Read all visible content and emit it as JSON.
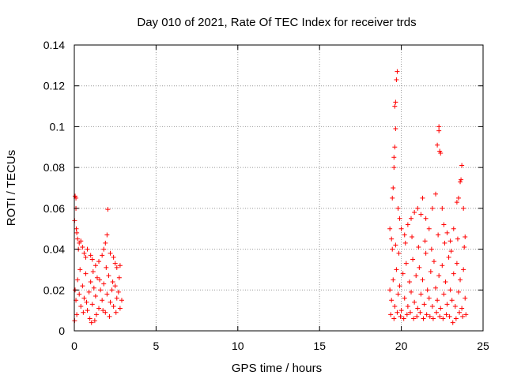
{
  "chart_data": {
    "type": "scatter",
    "title": "Day 010 of 2021, Rate Of TEC Index for receiver trds",
    "xlabel": "GPS time / hours",
    "ylabel": "ROTI / TECUs",
    "xlim": [
      0,
      25
    ],
    "ylim": [
      0,
      0.14
    ],
    "xticks": [
      0,
      5,
      10,
      15,
      20,
      25
    ],
    "yticks": [
      0,
      0.02,
      0.04,
      0.06,
      0.08,
      0.1,
      0.12,
      0.14
    ],
    "xtick_labels": [
      "0",
      "5",
      "10",
      "15",
      "20",
      "25"
    ],
    "ytick_labels": [
      "0",
      "0.02",
      "0.04",
      "0.06",
      "0.08",
      "0.1",
      "0.12",
      "0.14"
    ],
    "grid": true,
    "marker": "+",
    "color": "#ff0000",
    "points": [
      [
        0.02,
        0.054
      ],
      [
        0.05,
        0.066
      ],
      [
        0.1,
        0.065
      ],
      [
        0.1,
        0.06
      ],
      [
        0.12,
        0.05
      ],
      [
        0.15,
        0.048
      ],
      [
        0.2,
        0.045
      ],
      [
        0.25,
        0.04
      ],
      [
        0.3,
        0.043
      ],
      [
        0.4,
        0.044
      ],
      [
        0.5,
        0.041
      ],
      [
        0.6,
        0.038
      ],
      [
        0.7,
        0.036
      ],
      [
        0.8,
        0.04
      ],
      [
        1.0,
        0.037
      ],
      [
        1.1,
        0.035
      ],
      [
        1.3,
        0.032
      ],
      [
        1.5,
        0.034
      ],
      [
        1.7,
        0.037
      ],
      [
        1.8,
        0.04
      ],
      [
        1.9,
        0.043
      ],
      [
        2.0,
        0.047
      ],
      [
        2.05,
        0.0595
      ],
      [
        2.2,
        0.038
      ],
      [
        2.4,
        0.036
      ],
      [
        2.5,
        0.033
      ],
      [
        2.6,
        0.031
      ],
      [
        2.8,
        0.032
      ],
      [
        0.05,
        0.02
      ],
      [
        0.1,
        0.015
      ],
      [
        0.2,
        0.025
      ],
      [
        0.3,
        0.018
      ],
      [
        0.4,
        0.012
      ],
      [
        0.5,
        0.022
      ],
      [
        0.6,
        0.016
      ],
      [
        0.7,
        0.028
      ],
      [
        0.8,
        0.01
      ],
      [
        0.9,
        0.019
      ],
      [
        1.0,
        0.024
      ],
      [
        1.1,
        0.013
      ],
      [
        1.2,
        0.021
      ],
      [
        1.3,
        0.017
      ],
      [
        1.4,
        0.026
      ],
      [
        1.5,
        0.011
      ],
      [
        1.6,
        0.02
      ],
      [
        1.7,
        0.015
      ],
      [
        1.8,
        0.023
      ],
      [
        1.9,
        0.009
      ],
      [
        2.0,
        0.018
      ],
      [
        2.1,
        0.027
      ],
      [
        2.2,
        0.014
      ],
      [
        2.3,
        0.02
      ],
      [
        2.4,
        0.012
      ],
      [
        2.5,
        0.022
      ],
      [
        2.6,
        0.016
      ],
      [
        2.7,
        0.019
      ],
      [
        2.8,
        0.011
      ],
      [
        2.9,
        0.015
      ],
      [
        0.15,
        0.008
      ],
      [
        0.35,
        0.03
      ],
      [
        0.55,
        0.009
      ],
      [
        0.75,
        0.014
      ],
      [
        0.95,
        0.006
      ],
      [
        1.15,
        0.029
      ],
      [
        1.35,
        0.008
      ],
      [
        1.55,
        0.025
      ],
      [
        1.75,
        0.01
      ],
      [
        1.95,
        0.031
      ],
      [
        2.15,
        0.007
      ],
      [
        2.35,
        0.024
      ],
      [
        2.55,
        0.009
      ],
      [
        2.75,
        0.026
      ],
      [
        0.02,
        0.005
      ],
      [
        1.05,
        0.004
      ],
      [
        1.25,
        0.005
      ],
      [
        19.3,
        0.05
      ],
      [
        19.4,
        0.045
      ],
      [
        19.45,
        0.065
      ],
      [
        19.5,
        0.07
      ],
      [
        19.55,
        0.08
      ],
      [
        19.55,
        0.085
      ],
      [
        19.6,
        0.09
      ],
      [
        19.6,
        0.11
      ],
      [
        19.65,
        0.112
      ],
      [
        19.65,
        0.099
      ],
      [
        19.7,
        0.123
      ],
      [
        19.75,
        0.127
      ],
      [
        19.8,
        0.06
      ],
      [
        19.9,
        0.055
      ],
      [
        20.0,
        0.05
      ],
      [
        20.2,
        0.047
      ],
      [
        20.4,
        0.052
      ],
      [
        20.6,
        0.055
      ],
      [
        20.8,
        0.058
      ],
      [
        21.0,
        0.06
      ],
      [
        21.2,
        0.057
      ],
      [
        21.3,
        0.065
      ],
      [
        21.5,
        0.055
      ],
      [
        21.7,
        0.05
      ],
      [
        21.9,
        0.06
      ],
      [
        22.1,
        0.067
      ],
      [
        22.2,
        0.091
      ],
      [
        22.3,
        0.1
      ],
      [
        22.3,
        0.098
      ],
      [
        22.35,
        0.088
      ],
      [
        22.4,
        0.087
      ],
      [
        22.5,
        0.06
      ],
      [
        22.6,
        0.052
      ],
      [
        22.8,
        0.048
      ],
      [
        23.0,
        0.044
      ],
      [
        23.2,
        0.05
      ],
      [
        23.4,
        0.063
      ],
      [
        23.5,
        0.065
      ],
      [
        23.6,
        0.073
      ],
      [
        23.65,
        0.074
      ],
      [
        23.7,
        0.081
      ],
      [
        23.8,
        0.06
      ],
      [
        23.9,
        0.046
      ],
      [
        19.3,
        0.02
      ],
      [
        19.4,
        0.015
      ],
      [
        19.5,
        0.025
      ],
      [
        19.6,
        0.012
      ],
      [
        19.7,
        0.03
      ],
      [
        19.8,
        0.018
      ],
      [
        19.9,
        0.022
      ],
      [
        20.0,
        0.01
      ],
      [
        20.1,
        0.028
      ],
      [
        20.2,
        0.016
      ],
      [
        20.3,
        0.033
      ],
      [
        20.4,
        0.012
      ],
      [
        20.5,
        0.024
      ],
      [
        20.6,
        0.019
      ],
      [
        20.7,
        0.035
      ],
      [
        20.8,
        0.014
      ],
      [
        20.9,
        0.027
      ],
      [
        21.0,
        0.011
      ],
      [
        21.1,
        0.031
      ],
      [
        21.2,
        0.018
      ],
      [
        21.3,
        0.025
      ],
      [
        21.4,
        0.013
      ],
      [
        21.5,
        0.038
      ],
      [
        21.6,
        0.02
      ],
      [
        21.7,
        0.016
      ],
      [
        21.8,
        0.029
      ],
      [
        21.9,
        0.012
      ],
      [
        22.0,
        0.034
      ],
      [
        22.1,
        0.021
      ],
      [
        22.2,
        0.015
      ],
      [
        22.3,
        0.027
      ],
      [
        22.4,
        0.011
      ],
      [
        22.5,
        0.032
      ],
      [
        22.6,
        0.018
      ],
      [
        22.7,
        0.024
      ],
      [
        22.8,
        0.013
      ],
      [
        22.9,
        0.036
      ],
      [
        23.0,
        0.02
      ],
      [
        23.1,
        0.015
      ],
      [
        23.2,
        0.028
      ],
      [
        23.3,
        0.012
      ],
      [
        23.4,
        0.033
      ],
      [
        23.5,
        0.019
      ],
      [
        23.6,
        0.025
      ],
      [
        23.7,
        0.011
      ],
      [
        23.8,
        0.03
      ],
      [
        23.9,
        0.016
      ],
      [
        19.35,
        0.008
      ],
      [
        19.55,
        0.006
      ],
      [
        19.75,
        0.009
      ],
      [
        19.95,
        0.007
      ],
      [
        20.15,
        0.006
      ],
      [
        20.35,
        0.008
      ],
      [
        20.55,
        0.009
      ],
      [
        20.75,
        0.006
      ],
      [
        20.95,
        0.007
      ],
      [
        21.15,
        0.009
      ],
      [
        21.35,
        0.006
      ],
      [
        21.55,
        0.008
      ],
      [
        21.75,
        0.007
      ],
      [
        21.95,
        0.006
      ],
      [
        22.15,
        0.009
      ],
      [
        22.35,
        0.007
      ],
      [
        22.55,
        0.006
      ],
      [
        22.75,
        0.008
      ],
      [
        22.95,
        0.007
      ],
      [
        23.15,
        0.004
      ],
      [
        23.35,
        0.006
      ],
      [
        23.55,
        0.009
      ],
      [
        23.75,
        0.007
      ],
      [
        23.95,
        0.008
      ],
      [
        19.45,
        0.04
      ],
      [
        19.65,
        0.042
      ],
      [
        19.85,
        0.038
      ],
      [
        20.25,
        0.043
      ],
      [
        20.65,
        0.046
      ],
      [
        21.05,
        0.041
      ],
      [
        21.45,
        0.044
      ],
      [
        21.85,
        0.04
      ],
      [
        22.25,
        0.047
      ],
      [
        22.65,
        0.043
      ],
      [
        23.05,
        0.039
      ],
      [
        23.45,
        0.045
      ],
      [
        23.85,
        0.041
      ]
    ]
  }
}
